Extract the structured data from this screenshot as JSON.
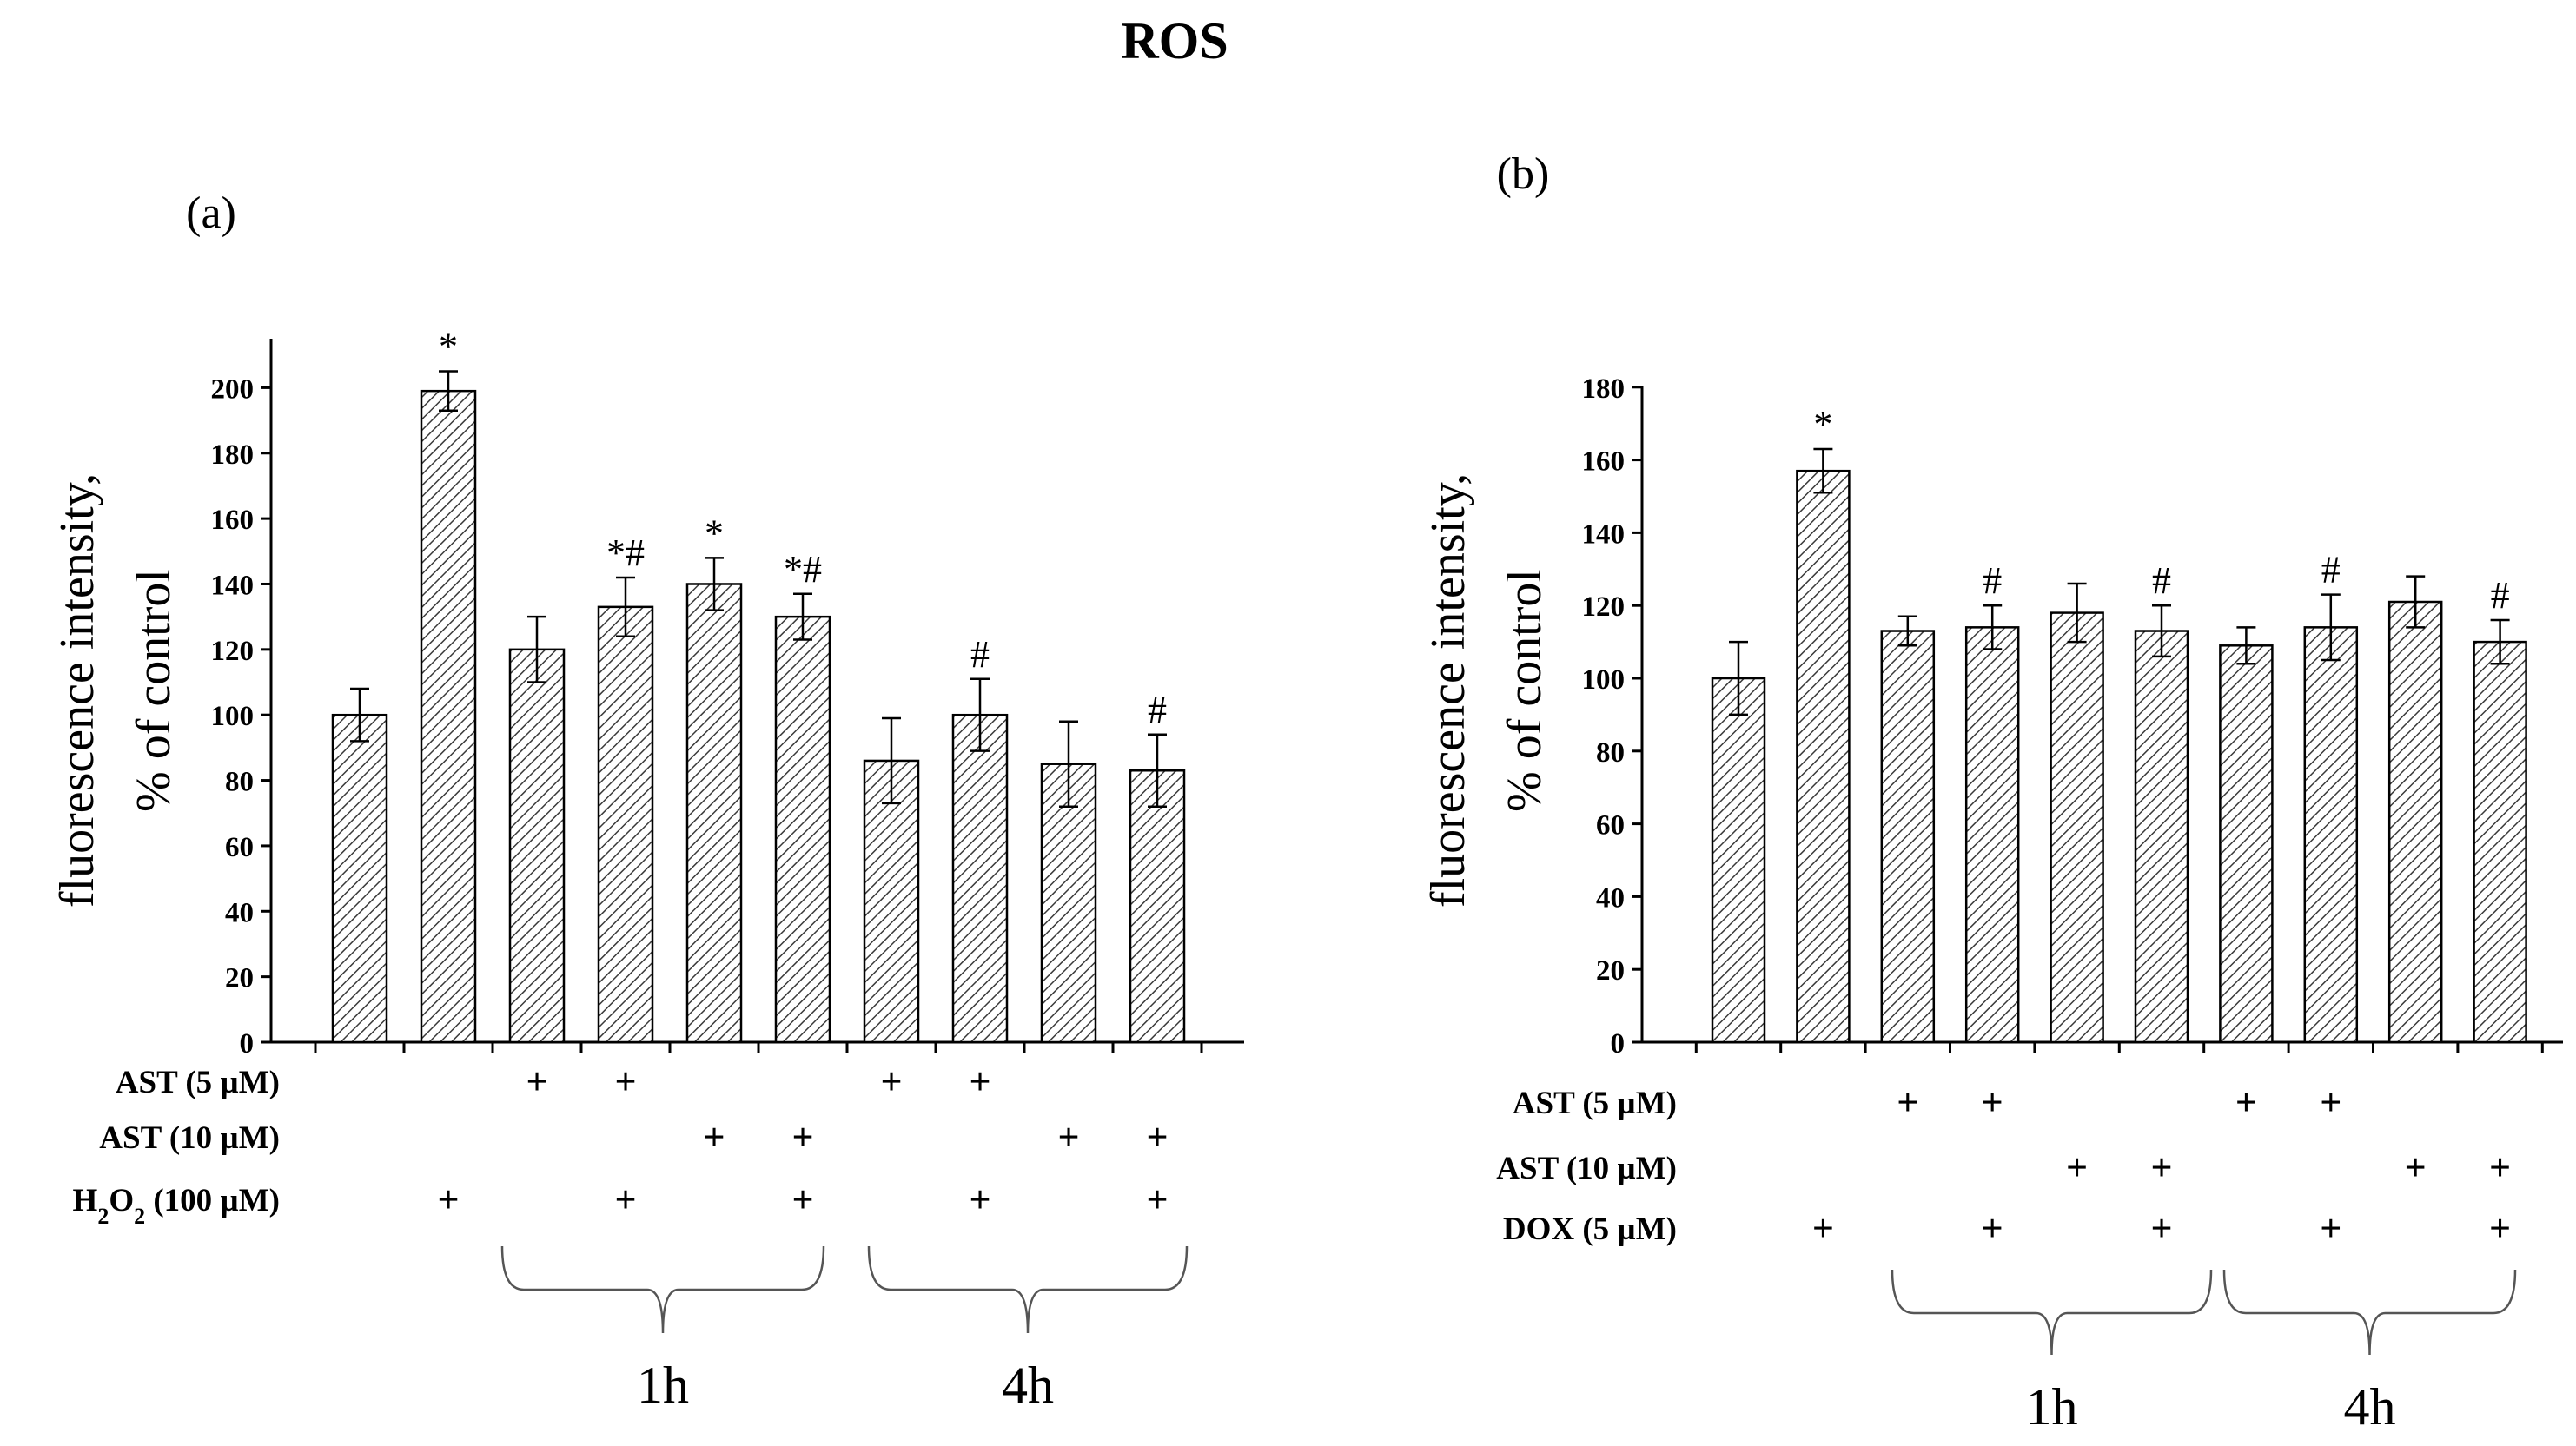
{
  "title": "ROS",
  "chart_data": [
    {
      "type": "bar",
      "panel_label": "(a)",
      "ylabel_line1": "fluorescence intensity,",
      "ylabel_line2": "% of control",
      "ylim": [
        0,
        215
      ],
      "yticks": [
        0,
        20,
        40,
        60,
        80,
        100,
        120,
        140,
        160,
        180,
        200
      ],
      "values": [
        100,
        199,
        120,
        133,
        140,
        130,
        86,
        100,
        85,
        83
      ],
      "errors": [
        8,
        6,
        10,
        9,
        8,
        7,
        13,
        11,
        13,
        11
      ],
      "annotations": [
        "",
        "*",
        "",
        "*#",
        "*",
        "*#",
        "",
        "#",
        "",
        "#"
      ],
      "treatments": [
        {
          "label": "AST (5 µM)",
          "marks": [
            false,
            false,
            true,
            true,
            false,
            false,
            true,
            true,
            false,
            false
          ]
        },
        {
          "label": "AST (10 µM)",
          "marks": [
            false,
            false,
            false,
            false,
            true,
            true,
            false,
            false,
            true,
            true
          ]
        },
        {
          "label": "H2O2 (100 µM)",
          "label_main": "H",
          "label_sub": "2",
          "label_mid": "O",
          "label_sub2": "2",
          "label_tail": " (100 µM)",
          "marks": [
            false,
            true,
            false,
            true,
            false,
            true,
            false,
            true,
            false,
            true
          ]
        }
      ],
      "groups": [
        {
          "label": "1h",
          "from": 2,
          "to": 5
        },
        {
          "label": "4h",
          "from": 6,
          "to": 9
        }
      ]
    },
    {
      "type": "bar",
      "panel_label": "(b)",
      "ylabel_line1": "fluorescence intensity,",
      "ylabel_line2": "% of control",
      "ylim": [
        0,
        180
      ],
      "yticks": [
        0,
        20,
        40,
        60,
        80,
        100,
        120,
        140,
        160,
        180
      ],
      "values": [
        100,
        157,
        113,
        114,
        118,
        113,
        109,
        114,
        121,
        110
      ],
      "errors": [
        10,
        6,
        4,
        6,
        8,
        7,
        5,
        9,
        7,
        6
      ],
      "annotations": [
        "",
        "*",
        "",
        "#",
        "",
        "#",
        "",
        "#",
        "",
        "#"
      ],
      "treatments": [
        {
          "label": "AST (5 µM)",
          "marks": [
            false,
            false,
            true,
            true,
            false,
            false,
            true,
            true,
            false,
            false
          ]
        },
        {
          "label": "AST (10 µM)",
          "marks": [
            false,
            false,
            false,
            false,
            true,
            true,
            false,
            false,
            true,
            true
          ]
        },
        {
          "label": "DOX (5 µM)",
          "marks": [
            false,
            true,
            false,
            true,
            false,
            true,
            false,
            true,
            false,
            true
          ]
        }
      ],
      "groups": [
        {
          "label": "1h",
          "from": 2,
          "to": 5
        },
        {
          "label": "4h",
          "from": 6,
          "to": 9
        }
      ]
    }
  ]
}
